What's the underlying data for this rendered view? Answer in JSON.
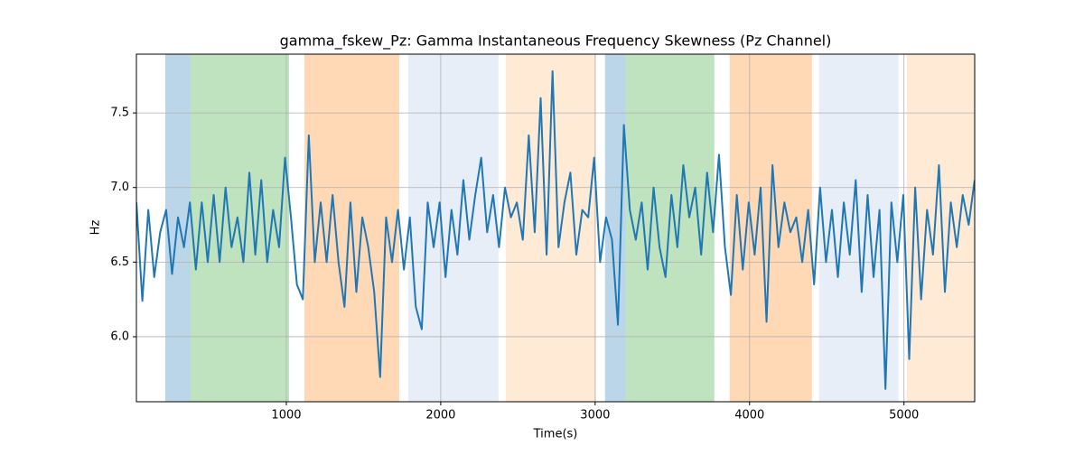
{
  "chart_data": {
    "type": "line",
    "title": "gamma_fskew_Pz: Gamma Instantaneous Frequency Skewness (Pz Channel)",
    "xlabel": "Time(s)",
    "ylabel": "Hz",
    "xlim": [
      29,
      5458
    ],
    "ylim": [
      5.564,
      7.894
    ],
    "xticks": [
      1000,
      2000,
      3000,
      4000,
      5000
    ],
    "yticks": [
      {
        "value": 6,
        "label": "6.0"
      },
      6.5,
      {
        "value": 7,
        "label": "7.0"
      },
      7.5
    ],
    "grid": true,
    "spans": [
      {
        "start": 216,
        "end": 380,
        "color": "#1f77b4"
      },
      {
        "start": 380,
        "end": 1018,
        "color": "#2ca02c"
      },
      {
        "start": 1117,
        "end": 1731,
        "color": "#ff7f0e"
      },
      {
        "start": 1789,
        "end": 2374,
        "color": "#aec7e8"
      },
      {
        "start": 2421,
        "end": 3006,
        "color": "#ffbb78"
      },
      {
        "start": 3064,
        "end": 3199,
        "color": "#1f77b4"
      },
      {
        "start": 3199,
        "end": 3772,
        "color": "#2ca02c"
      },
      {
        "start": 3871,
        "end": 4404,
        "color": "#ff7f0e"
      },
      {
        "start": 4450,
        "end": 4965,
        "color": "#aec7e8"
      },
      {
        "start": 5018,
        "end": 5456,
        "color": "#ffbb78"
      }
    ],
    "x": [
      29,
      67.5,
      106,
      144.5,
      183,
      221.5,
      260,
      298.5,
      337,
      375.5,
      414,
      452.5,
      491,
      529.5,
      568,
      606.5,
      645,
      683.5,
      722,
      760.5,
      799,
      837.5,
      876,
      914.5,
      953,
      991.5,
      1030,
      1068.5,
      1107,
      1145.5,
      1184,
      1222.5,
      1261,
      1299.5,
      1338,
      1376.5,
      1415,
      1453.5,
      1492,
      1530.5,
      1569,
      1607.5,
      1646,
      1684.5,
      1723,
      1761.5,
      1800,
      1838.5,
      1877,
      1915.5,
      1954,
      1992.5,
      2031,
      2069.5,
      2108,
      2146.5,
      2185,
      2223.5,
      2262,
      2300.5,
      2339,
      2377.5,
      2416,
      2454.5,
      2493,
      2531.5,
      2570,
      2608.5,
      2647,
      2685.5,
      2724,
      2762.5,
      2801,
      2839.5,
      2878,
      2916.5,
      2955,
      2993.5,
      3032,
      3070.5,
      3109,
      3147.5,
      3186,
      3224.5,
      3263,
      3301.5,
      3340,
      3378.5,
      3417,
      3455.5,
      3494,
      3532.5,
      3571,
      3609.5,
      3648,
      3686.5,
      3725,
      3763.5,
      3802,
      3840.5,
      3879,
      3917.5,
      3956,
      3994.5,
      4033,
      4071.5,
      4110,
      4148.5,
      4187,
      4225.5,
      4264,
      4302.5,
      4341,
      4379.5,
      4418,
      4456.5,
      4495,
      4533.5,
      4572,
      4610.5,
      4649,
      4687.5,
      4726,
      4764.5,
      4803,
      4841.5,
      4880,
      4918.5,
      4957,
      4995.5,
      5034,
      5072.5,
      5111,
      5149.5,
      5188,
      5226.5,
      5265,
      5303.5,
      5342,
      5380.5,
      5419,
      5457.5
    ],
    "series": [
      {
        "color": "#1f77b4",
        "values": [
          6.9,
          6.24,
          6.85,
          6.4,
          6.7,
          6.85,
          6.42,
          6.8,
          6.6,
          6.9,
          6.45,
          6.9,
          6.5,
          6.95,
          6.5,
          7.0,
          6.6,
          6.8,
          6.5,
          7.1,
          6.55,
          7.05,
          6.5,
          6.85,
          6.6,
          7.2,
          6.8,
          6.35,
          6.25,
          7.35,
          6.5,
          6.9,
          6.5,
          6.95,
          6.5,
          6.2,
          6.9,
          6.3,
          6.8,
          6.6,
          6.3,
          5.73,
          6.8,
          6.5,
          6.85,
          6.45,
          6.8,
          6.2,
          6.05,
          6.9,
          6.6,
          6.9,
          6.4,
          6.85,
          6.55,
          7.05,
          6.65,
          6.95,
          7.2,
          6.7,
          6.95,
          6.6,
          7.0,
          6.8,
          6.9,
          6.65,
          7.35,
          6.7,
          7.6,
          6.55,
          7.78,
          6.6,
          6.9,
          7.1,
          6.55,
          6.85,
          6.8,
          7.2,
          6.5,
          6.8,
          6.65,
          6.08,
          7.42,
          6.85,
          6.65,
          6.9,
          6.45,
          7.0,
          6.6,
          6.4,
          6.95,
          6.6,
          7.15,
          6.8,
          7.0,
          6.55,
          7.1,
          6.7,
          7.22,
          6.6,
          6.28,
          6.95,
          6.45,
          6.9,
          6.55,
          7.0,
          6.1,
          7.15,
          6.6,
          6.9,
          6.7,
          6.8,
          6.5,
          6.85,
          6.35,
          7.0,
          6.5,
          6.85,
          6.4,
          6.9,
          6.55,
          7.05,
          6.3,
          6.95,
          6.4,
          6.85,
          5.65,
          6.9,
          6.5,
          6.95,
          5.85,
          7.0,
          6.25,
          6.85,
          6.55,
          7.15,
          6.3,
          6.9,
          6.6,
          6.95,
          6.75,
          7.05
        ]
      }
    ]
  }
}
